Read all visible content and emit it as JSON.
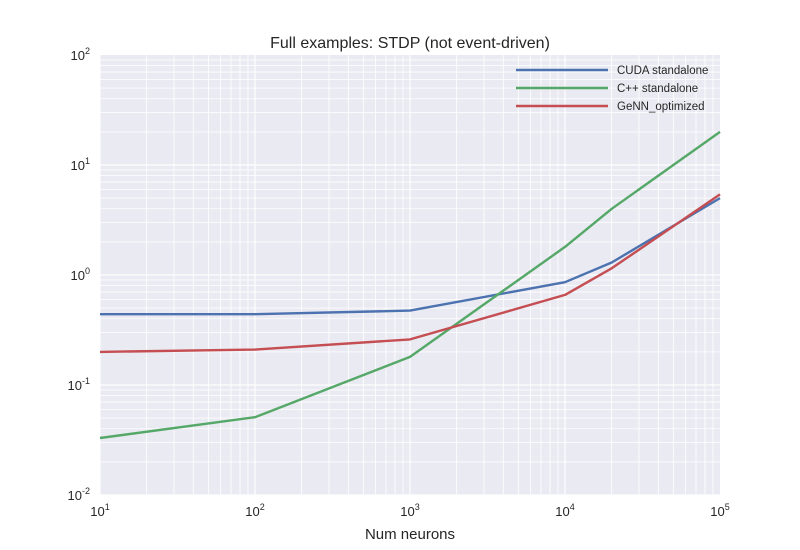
{
  "chart_data": {
    "type": "line",
    "title": "Full examples: STDP (not event-driven)",
    "xlabel": "Num neurons",
    "ylabel": "",
    "x_scale": "log",
    "y_scale": "log",
    "xlim": [
      10,
      100000
    ],
    "ylim": [
      0.01,
      100
    ],
    "grid": true,
    "legend_position": "top-right",
    "x_ticks": [
      {
        "base": "10",
        "exp": "1",
        "value": 10
      },
      {
        "base": "10",
        "exp": "2",
        "value": 100
      },
      {
        "base": "10",
        "exp": "3",
        "value": 1000
      },
      {
        "base": "10",
        "exp": "4",
        "value": 10000
      },
      {
        "base": "10",
        "exp": "5",
        "value": 100000
      }
    ],
    "y_ticks": [
      {
        "base": "10",
        "exp": "-2",
        "value": 0.01
      },
      {
        "base": "10",
        "exp": "-1",
        "value": 0.1
      },
      {
        "base": "10",
        "exp": "0",
        "value": 1
      },
      {
        "base": "10",
        "exp": "1",
        "value": 10
      },
      {
        "base": "10",
        "exp": "2",
        "value": 100
      }
    ],
    "series": [
      {
        "name": "CUDA standalone",
        "color": "#4c72b0",
        "x": [
          10,
          100,
          1000,
          10000,
          20000,
          100000
        ],
        "y": [
          0.44,
          0.44,
          0.475,
          0.86,
          1.3,
          5.0
        ]
      },
      {
        "name": "C++ standalone",
        "color": "#55a868",
        "x": [
          10,
          100,
          1000,
          10000,
          20000,
          100000
        ],
        "y": [
          0.033,
          0.051,
          0.18,
          1.8,
          4.0,
          20.0
        ]
      },
      {
        "name": "GeNN_optimized",
        "color": "#c44e52",
        "x": [
          10,
          100,
          1000,
          10000,
          20000,
          100000
        ],
        "y": [
          0.2,
          0.21,
          0.26,
          0.66,
          1.15,
          5.4
        ]
      }
    ]
  }
}
